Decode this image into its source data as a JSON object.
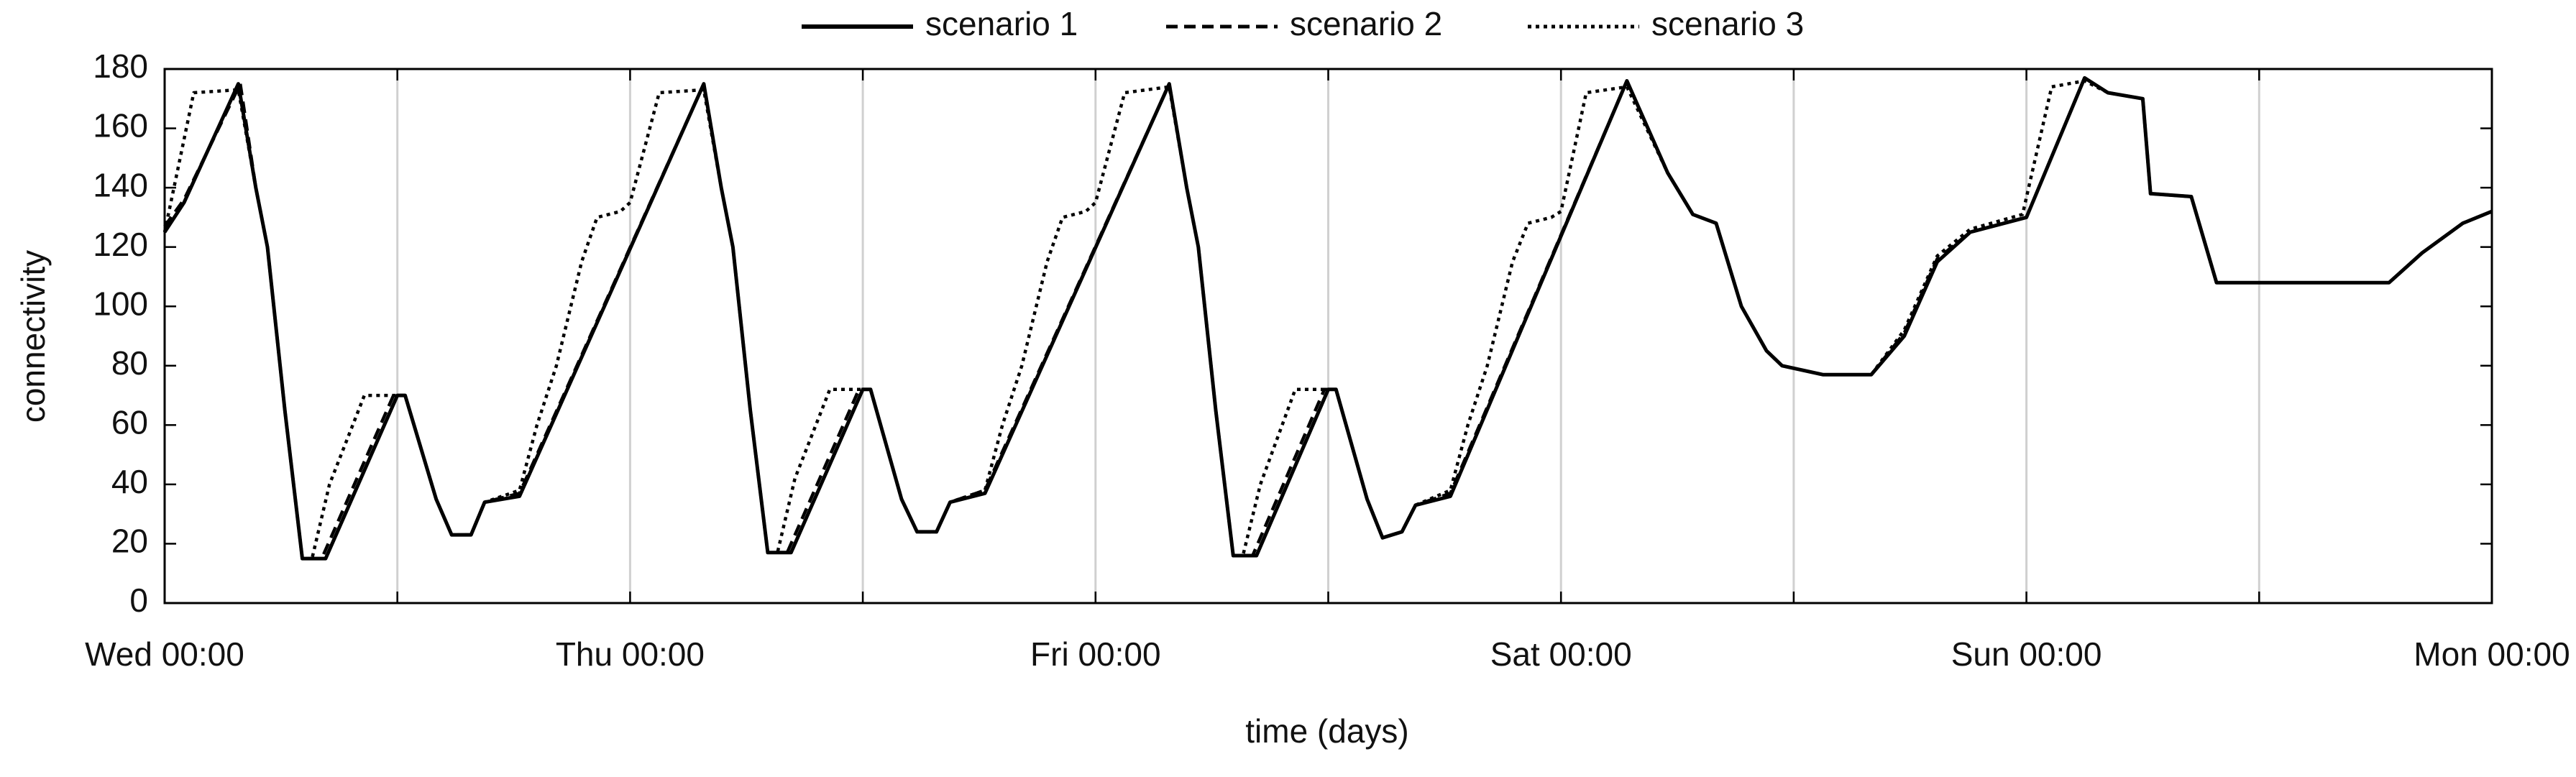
{
  "chart_data": {
    "type": "line",
    "x_label": "time (days)",
    "y_label": "connectivity",
    "xlim": [
      0,
      120
    ],
    "ylim": [
      0,
      180
    ],
    "xticks": [
      {
        "value": 0,
        "label": "Wed 00:00"
      },
      {
        "value": 12,
        "label": null
      },
      {
        "value": 24,
        "label": "Thu 00:00"
      },
      {
        "value": 36,
        "label": null
      },
      {
        "value": 48,
        "label": "Fri 00:00"
      },
      {
        "value": 60,
        "label": null
      },
      {
        "value": 72,
        "label": "Sat 00:00"
      },
      {
        "value": 84,
        "label": null
      },
      {
        "value": 96,
        "label": "Sun 00:00"
      },
      {
        "value": 108,
        "label": null
      },
      {
        "value": 120,
        "label": "Mon 00:00"
      }
    ],
    "yticks": [
      0,
      20,
      40,
      60,
      80,
      100,
      120,
      140,
      160,
      180
    ],
    "grid": "x",
    "legend": "top",
    "series": [
      {
        "name": "scenario 1",
        "color": "#000000",
        "dash": "solid",
        "x": [
          0,
          1,
          3.8,
          4.7,
          5.3,
          6.2,
          7.1,
          8.3,
          12,
          12.4,
          14,
          14.8,
          15.8,
          16.5,
          18.3,
          27.8,
          28.7,
          29.3,
          30.2,
          31.1,
          32.3,
          36,
          36.4,
          38,
          38.8,
          39.8,
          40.5,
          42.3,
          51.8,
          52.7,
          53.3,
          54.2,
          55.1,
          56.3,
          60,
          60.4,
          62,
          62.8,
          63.8,
          64.5,
          66.3,
          75.4,
          77.5,
          78.8,
          80,
          81.3,
          82.6,
          83.4,
          85.5,
          88,
          89.7,
          91.4,
          93.1,
          96,
          99,
          100.2,
          102,
          102.4,
          104.5,
          105.8,
          110,
          114.7,
          116.4,
          118.5,
          120
        ],
        "values": [
          125,
          135,
          175,
          140,
          120,
          65,
          15,
          15,
          70,
          70,
          35,
          23,
          23,
          34,
          36,
          175,
          140,
          120,
          65,
          17,
          17,
          72,
          72,
          35,
          24,
          24,
          34,
          37,
          175,
          140,
          120,
          65,
          16,
          16,
          72,
          72,
          35,
          22,
          24,
          33,
          36,
          176,
          145,
          131,
          128,
          100,
          85,
          80,
          77,
          77,
          90,
          115,
          125,
          130,
          177,
          172,
          170,
          138,
          137,
          108,
          108,
          108,
          118,
          128,
          132
        ]
      },
      {
        "name": "scenario 2",
        "color": "#000000",
        "dash": "dashed",
        "x": [
          0,
          1,
          3.9,
          4.7,
          5.3,
          6.2,
          7.1,
          8.1,
          11.8,
          12.4,
          14,
          14.8,
          15.8,
          16.5,
          18.3,
          27.8,
          28.7,
          29.3,
          30.2,
          31.1,
          32.1,
          35.8,
          36.4,
          38,
          38.8,
          39.8,
          40.5,
          42.3,
          51.8,
          52.7,
          53.3,
          54.2,
          55.1,
          56.1,
          59.8,
          60.4,
          62,
          62.8,
          63.8,
          64.5,
          66.3,
          75.4,
          77.5,
          78.8,
          80,
          81.3,
          82.6,
          83.4,
          85.5,
          88,
          89.7,
          91.4,
          93.1,
          96,
          99,
          100.2,
          102,
          102.4,
          104.5,
          105.8,
          110,
          114.7,
          116.4,
          118.5,
          120
        ],
        "values": [
          127,
          136,
          175,
          140,
          120,
          65,
          15,
          15,
          70,
          70,
          35,
          23,
          23,
          34,
          37,
          175,
          140,
          120,
          65,
          17,
          17,
          72,
          72,
          35,
          24,
          24,
          34,
          38,
          175,
          140,
          120,
          65,
          16,
          16,
          72,
          72,
          35,
          22,
          24,
          33,
          37,
          176,
          145,
          131,
          128,
          100,
          85,
          80,
          77,
          77,
          91,
          116,
          125,
          130,
          177,
          172,
          170,
          138,
          137,
          108,
          108,
          108,
          118,
          128,
          132
        ]
      },
      {
        "name": "scenario 3",
        "color": "#000000",
        "dash": "dotted",
        "x": [
          0,
          0.8,
          1.5,
          3.8,
          4.7,
          5.3,
          6.2,
          7.1,
          7.6,
          8.5,
          10.3,
          12.4,
          14,
          14.8,
          15.8,
          16.5,
          18.3,
          19.2,
          20.2,
          21.5,
          22.3,
          23.5,
          24,
          25.5,
          27.8,
          28.7,
          29.3,
          30.2,
          31.1,
          31.6,
          32.5,
          34.3,
          36.4,
          38,
          38.8,
          39.8,
          40.5,
          42.3,
          43.2,
          44.2,
          45.5,
          46.3,
          47.5,
          48,
          49.5,
          51.8,
          52.7,
          53.3,
          54.2,
          55.1,
          55.6,
          56.5,
          58.3,
          60.4,
          62,
          62.8,
          63.8,
          64.5,
          66.3,
          67.2,
          68.2,
          69.5,
          70.3,
          71.5,
          72,
          73.3,
          75.4,
          77.5,
          78.8,
          80,
          81.3,
          82.6,
          83.4,
          85.5,
          88,
          89.7,
          91.4,
          93.1,
          95.8,
          97.3,
          99,
          100.2,
          102,
          102.4,
          104.5,
          105.8,
          110,
          114.7,
          116.4,
          118.5,
          120
        ],
        "values": [
          125,
          150,
          172,
          173,
          140,
          120,
          65,
          15,
          15,
          40,
          70,
          70,
          35,
          23,
          23,
          34,
          38,
          60,
          80,
          115,
          130,
          132,
          135,
          172,
          173,
          140,
          120,
          65,
          17,
          17,
          42,
          72,
          72,
          35,
          24,
          24,
          34,
          38,
          60,
          80,
          115,
          130,
          132,
          135,
          172,
          174,
          140,
          120,
          65,
          16,
          16,
          40,
          72,
          72,
          35,
          22,
          24,
          33,
          38,
          60,
          80,
          115,
          128,
          130,
          132,
          172,
          174,
          145,
          131,
          128,
          100,
          85,
          80,
          77,
          77,
          92,
          117,
          126,
          131,
          174,
          176,
          172,
          170,
          138,
          137,
          108,
          108,
          108,
          118,
          128,
          132
        ]
      }
    ]
  }
}
